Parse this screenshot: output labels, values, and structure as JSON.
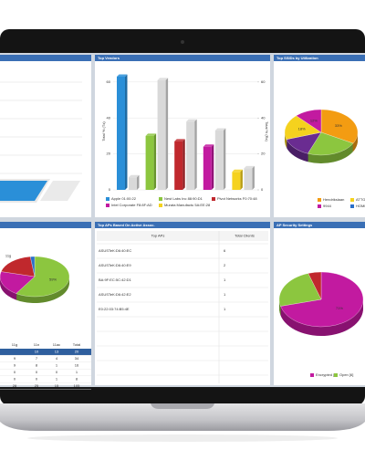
{
  "top_vendors": {
    "title": "Top Vendors",
    "y_label": "Total % (Tx)",
    "y2_label": "Total % (Rx)",
    "ylim": [
      0,
      65
    ],
    "yticks": [
      0,
      20,
      40,
      60
    ],
    "y2ticks": [
      0,
      20,
      40,
      60
    ],
    "rx_color": "#d9d9d9",
    "series": [
      {
        "name": "Apple 01:00:22",
        "color": "#2a8fd8",
        "tx": 63,
        "rx": 7
      },
      {
        "name": "Nest Labs Inc 88:90:D1",
        "color": "#8cc63f",
        "tx": 30,
        "rx": 61
      },
      {
        "name": "Pivot Networks F0:70:48",
        "color": "#c0282d",
        "tx": 27,
        "rx": 38
      },
      {
        "name": "Intel Corporate F8:8F:AD",
        "color": "#c21aa0",
        "tx": 24,
        "rx": 33
      },
      {
        "name": "Murata Manufactu 5A:EE:28",
        "color": "#f5d21e",
        "tx": 10,
        "rx": 12
      }
    ]
  },
  "top_ssids": {
    "title": "Top SSIDs by Utilization",
    "slices": [
      {
        "name": "Hendrikslaan",
        "value": 33,
        "label": "33%",
        "color": "#f39c12"
      },
      {
        "value": 23,
        "color": "#8cc63f"
      },
      {
        "value": 14,
        "color": "#6a2c91"
      },
      {
        "name": "ATTGHL",
        "value": 18,
        "label": "18%",
        "color": "#f5d21e"
      },
      {
        "name": "9944",
        "value": 12,
        "label": "12%",
        "color": "#c21aa0"
      },
      {
        "name": "HOME-5562",
        "value": 0,
        "color": "#2a6fc9"
      }
    ]
  },
  "top_aps": {
    "title": "Top APs Based On Active Assoc.",
    "headers": [
      "Top APs",
      "Total Clients"
    ],
    "rows": [
      [
        "ASUSTeK:D6:40:EC",
        "6"
      ],
      [
        "ASUSTeK:D6:40:E9",
        "2"
      ],
      [
        "BA:9F:EC:5C:42:D1",
        "1"
      ],
      [
        "ASUSTeK:D6:42:E2",
        "1"
      ],
      [
        "E0:22:03:74:B5:4E",
        "1"
      ]
    ]
  },
  "ap_security": {
    "title": "AP Security Settings",
    "slices": [
      {
        "name": "Encrypted [1]",
        "value": 71,
        "label": "71%",
        "color": "#c21aa0"
      },
      {
        "name": "Open [6]",
        "value": 24,
        "color": "#8cc63f"
      },
      {
        "value": 5,
        "color": "#c0282d"
      }
    ]
  },
  "radio_mix": {
    "slices": [
      {
        "value": 59,
        "label": "59%",
        "color": "#8cc63f"
      },
      {
        "value": 20,
        "color": "#c21aa0"
      },
      {
        "name": "11g",
        "value": 19,
        "color": "#c0282d"
      },
      {
        "value": 2,
        "color": "#2a6fc9"
      }
    ],
    "table": {
      "headers": [
        "11g",
        "11n",
        "11ac",
        "Total"
      ],
      "rows": [
        [
          "",
          "10",
          "13",
          "20"
        ],
        [
          "9",
          "7",
          "4",
          "34"
        ],
        [
          "9",
          "8",
          "1",
          "16"
        ],
        [
          "0",
          "0",
          "0",
          "1"
        ],
        [
          "0",
          "0",
          "1",
          "8"
        ],
        [
          "28",
          "25",
          "15",
          "105"
        ]
      ]
    }
  }
}
